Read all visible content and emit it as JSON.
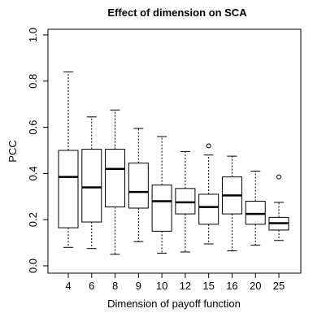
{
  "chart_data": {
    "type": "boxplot",
    "title": "Effect of dimension on SCA",
    "xlabel": "Dimension of payoff function",
    "ylabel": "PCC",
    "ylim": [
      0,
      1
    ],
    "yticks": [
      "0.0",
      "0.2",
      "0.4",
      "0.6",
      "0.8",
      "1.0"
    ],
    "categories": [
      "4",
      "6",
      "8",
      "9",
      "10",
      "12",
      "15",
      "16",
      "20",
      "25"
    ],
    "boxes": [
      {
        "category": "4",
        "whisker_low": 0.08,
        "q1": 0.165,
        "median": 0.385,
        "q3": 0.5,
        "whisker_high": 0.84,
        "outliers": []
      },
      {
        "category": "6",
        "whisker_low": 0.075,
        "q1": 0.19,
        "median": 0.34,
        "q3": 0.505,
        "whisker_high": 0.645,
        "outliers": []
      },
      {
        "category": "8",
        "whisker_low": 0.05,
        "q1": 0.255,
        "median": 0.42,
        "q3": 0.505,
        "whisker_high": 0.675,
        "outliers": []
      },
      {
        "category": "9",
        "whisker_low": 0.105,
        "q1": 0.25,
        "median": 0.32,
        "q3": 0.445,
        "whisker_high": 0.595,
        "outliers": []
      },
      {
        "category": "10",
        "whisker_low": 0.055,
        "q1": 0.15,
        "median": 0.28,
        "q3": 0.35,
        "whisker_high": 0.56,
        "outliers": []
      },
      {
        "category": "12",
        "whisker_low": 0.06,
        "q1": 0.225,
        "median": 0.275,
        "q3": 0.335,
        "whisker_high": 0.495,
        "outliers": []
      },
      {
        "category": "15",
        "whisker_low": 0.095,
        "q1": 0.18,
        "median": 0.255,
        "q3": 0.31,
        "whisker_high": 0.48,
        "outliers": [
          0.52
        ]
      },
      {
        "category": "16",
        "whisker_low": 0.065,
        "q1": 0.225,
        "median": 0.305,
        "q3": 0.385,
        "whisker_high": 0.475,
        "outliers": []
      },
      {
        "category": "20",
        "whisker_low": 0.09,
        "q1": 0.18,
        "median": 0.225,
        "q3": 0.28,
        "whisker_high": 0.41,
        "outliers": []
      },
      {
        "category": "25",
        "whisker_low": 0.11,
        "q1": 0.155,
        "median": 0.185,
        "q3": 0.21,
        "whisker_high": 0.275,
        "outliers": [
          0.385
        ]
      }
    ],
    "grid": false,
    "legend": "none"
  }
}
